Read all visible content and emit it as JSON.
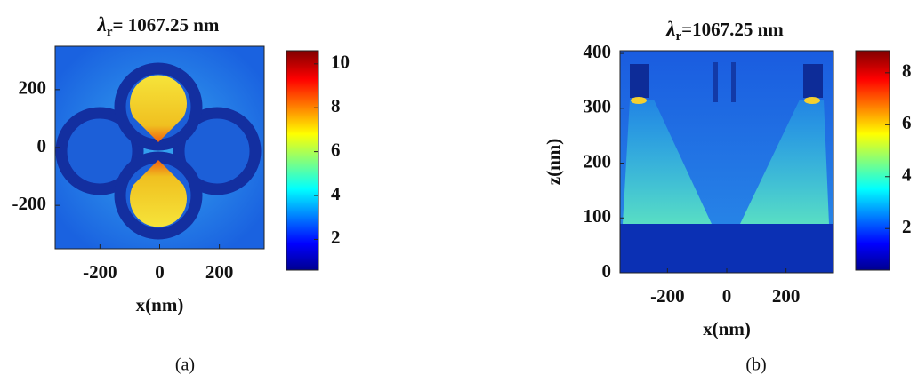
{
  "chart_data": [
    {
      "type": "heatmap",
      "title": {
        "symbol": "λ",
        "subscript": "r",
        "text": "= 1067.25 nm"
      },
      "xlabel": "x(nm)",
      "xlim": [
        -350,
        350
      ],
      "xticks": [
        -200,
        0,
        200
      ],
      "ylim": [
        -350,
        350
      ],
      "yticks": [
        -200,
        0,
        200
      ],
      "clim": [
        0.6,
        10.6
      ],
      "cticks": [
        2,
        4,
        6,
        8,
        10
      ],
      "caption": "(a)"
    },
    {
      "type": "heatmap",
      "title": {
        "symbol": "λ",
        "subscript": "r",
        "text": "=1067.25 nm"
      },
      "xlabel": "x(nm)",
      "ylabel": "z(nm)",
      "xlim": [
        -360,
        360
      ],
      "xticks": [
        -200,
        0,
        200
      ],
      "ylim": [
        0,
        405
      ],
      "yticks": [
        0,
        100,
        200,
        300,
        400
      ],
      "clim": [
        0.4,
        8.85
      ],
      "cticks": [
        2,
        4,
        6,
        8
      ],
      "caption": "(b)"
    }
  ]
}
